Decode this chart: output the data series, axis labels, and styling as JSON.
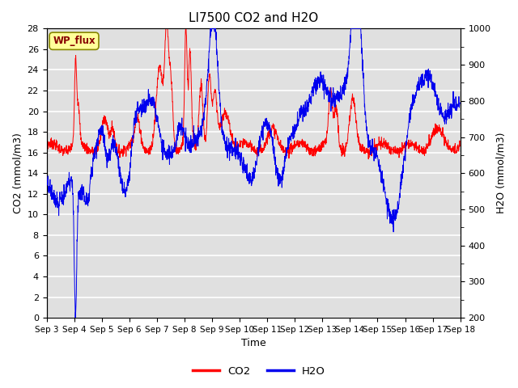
{
  "title": "LI7500 CO2 and H2O",
  "xlabel": "Time",
  "ylabel_left": "CO2 (mmol/m3)",
  "ylabel_right": "H2O (mmol/m3)",
  "ylim_left": [
    0,
    28
  ],
  "ylim_right": [
    200,
    1000
  ],
  "co2_color": "#FF0000",
  "h2o_color": "#0000EE",
  "fig_bg_color": "#FFFFFF",
  "plot_bg_color": "#E0E0E0",
  "wp_flux_label": "WP_flux",
  "wp_flux_bg": "#FFFF99",
  "wp_flux_border": "#AAAA00",
  "xtick_labels": [
    "Sep 3",
    "Sep 4",
    "Sep 5",
    "Sep 6",
    "Sep 7",
    "Sep 8",
    "Sep 9",
    "Sep 10",
    "Sep 11",
    "Sep 12",
    "Sep 13",
    "Sep 14",
    "Sep 15",
    "Sep 16",
    "Sep 17",
    "Sep 18"
  ],
  "legend_co2": "CO2",
  "legend_h2o": "H2O",
  "title_fontsize": 11,
  "axis_fontsize": 9,
  "tick_fontsize": 8
}
